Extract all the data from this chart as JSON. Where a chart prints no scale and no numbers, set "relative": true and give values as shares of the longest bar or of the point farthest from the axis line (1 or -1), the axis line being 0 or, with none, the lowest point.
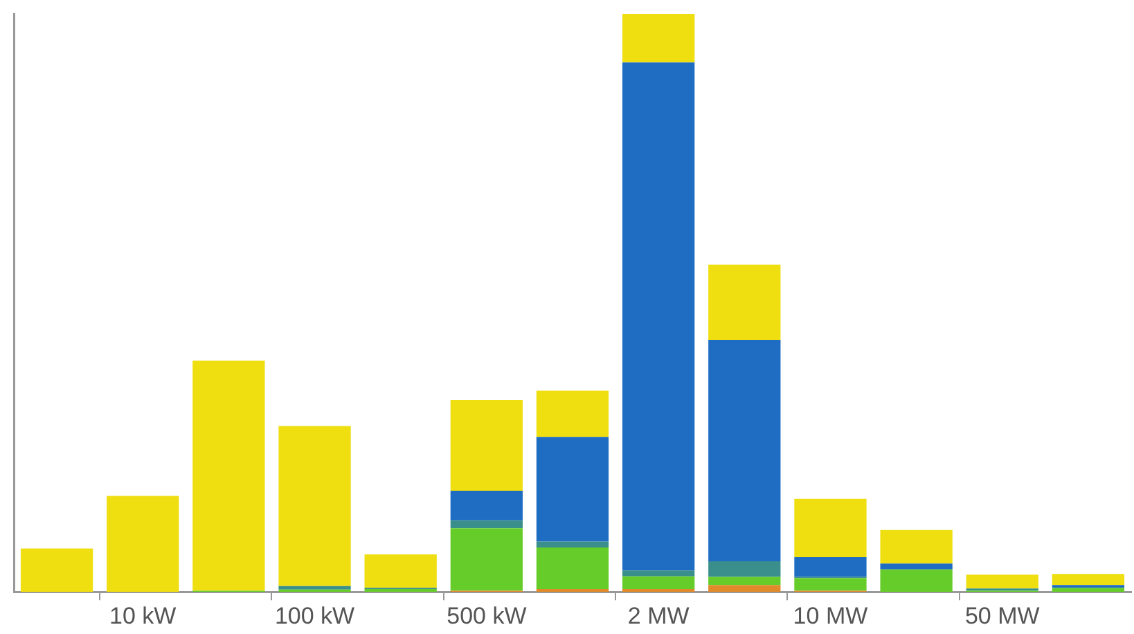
{
  "chart_data": {
    "type": "bar",
    "stacked": true,
    "relative": true,
    "legend": false,
    "grid": false,
    "categories": [
      null,
      "10 kW",
      null,
      "100 kW",
      null,
      "500 kW",
      null,
      "2 MW",
      null,
      "10 MW",
      null,
      "50 MW",
      null
    ],
    "series": [
      {
        "color": "#e08a2a",
        "values": [
          0,
          0,
          0,
          0,
          0,
          0.002,
          0.005,
          0.005,
          0.012,
          0.002,
          0,
          0,
          0
        ]
      },
      {
        "color": "#66cc2a",
        "values": [
          0,
          0,
          0.002,
          0.004,
          0.005,
          0.108,
          0.072,
          0.022,
          0.014,
          0.022,
          0.039,
          0.002,
          0.007
        ]
      },
      {
        "color": "#3a8f8c",
        "values": [
          0,
          0,
          0,
          0.006,
          0.002,
          0.014,
          0.01,
          0.01,
          0.027,
          0.002,
          0,
          0.004,
          0
        ]
      },
      {
        "color": "#1f6dc2",
        "values": [
          0,
          0,
          0,
          0,
          0,
          0.051,
          0.181,
          0.879,
          0.383,
          0.034,
          0.01,
          0,
          0.005
        ]
      },
      {
        "color": "#efde10",
        "values": [
          0.075,
          0.166,
          0.398,
          0.277,
          0.058,
          0.157,
          0.08,
          0.084,
          0.13,
          0.101,
          0.058,
          0.024,
          0.019
        ]
      }
    ]
  }
}
